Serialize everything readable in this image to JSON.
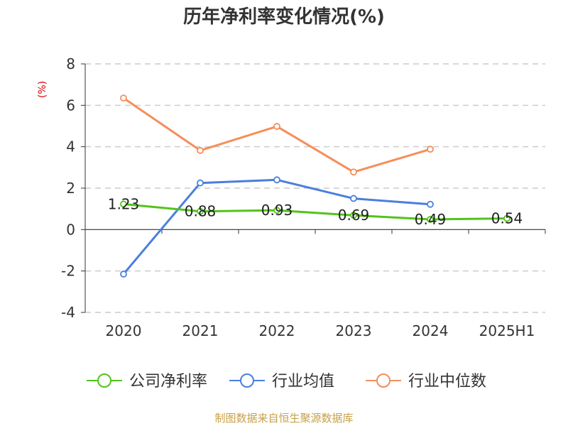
{
  "title": "历年净利率变化情况(%)",
  "unit": "(%)",
  "source": "制图数据来自恒生聚源数据库",
  "chart_data": {
    "type": "line",
    "title": "历年净利率变化情况(%)",
    "ylabel": "(%)",
    "categories": [
      "2020",
      "2021",
      "2022",
      "2023",
      "2024",
      "2025H1"
    ],
    "ylim": [
      -4,
      8
    ],
    "yticks": [
      -4,
      -2,
      0,
      2,
      4,
      6,
      8
    ],
    "grid": true,
    "legend_position": "bottom",
    "series": [
      {
        "name": "公司净利率",
        "color": "#52c41a",
        "values": [
          1.23,
          0.88,
          0.93,
          0.69,
          0.49,
          0.54
        ],
        "labels": [
          "1.23",
          "0.88",
          "0.93",
          "0.69",
          "0.49",
          "0.54"
        ]
      },
      {
        "name": "行业均值",
        "color": "#4a7fdd",
        "values": [
          -2.15,
          2.25,
          2.4,
          1.5,
          1.22,
          null
        ]
      },
      {
        "name": "行业中位数",
        "color": "#f58e5a",
        "values": [
          6.35,
          3.82,
          4.98,
          2.78,
          3.88,
          null
        ]
      }
    ]
  }
}
